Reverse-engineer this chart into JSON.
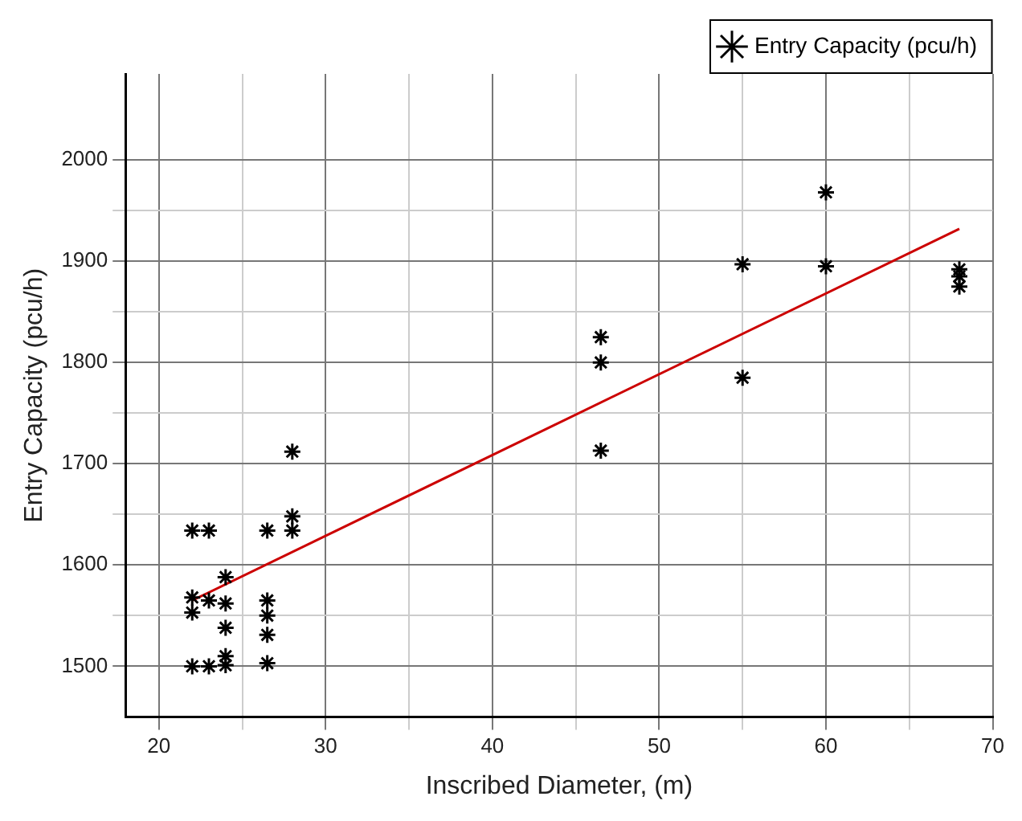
{
  "chart_data": {
    "type": "scatter",
    "xlabel": "Inscribed Diameter, (m)",
    "ylabel": "Entry Capacity (pcu/h)",
    "xlim": [
      18,
      70
    ],
    "ylim": [
      1450,
      2085
    ],
    "xticks": [
      20,
      {
        "value": 25,
        "label": null
      },
      30,
      {
        "value": 35,
        "label": null
      },
      40,
      {
        "value": 45,
        "label": null
      },
      50,
      {
        "value": 55,
        "label": null
      },
      60,
      {
        "value": 65,
        "label": null
      },
      70
    ],
    "yticks": [
      1500,
      {
        "value": 1550,
        "label": null
      },
      1600,
      {
        "value": 1650,
        "label": null
      },
      1700,
      {
        "value": 1750,
        "label": null
      },
      1800,
      {
        "value": 1850,
        "label": null
      },
      1900,
      {
        "value": 1950,
        "label": null
      },
      2000
    ],
    "grid": true,
    "legend": "top right",
    "marker": "cross",
    "series": [
      {
        "name": "Entry Capacity (pcu/h)",
        "color": "#000000",
        "x": [
          22,
          23,
          26.5,
          28,
          28,
          28,
          24,
          22,
          22,
          23,
          24,
          24,
          24,
          24,
          22,
          23,
          26.5,
          26.5,
          26.5,
          26.5,
          46.5,
          46.5,
          46.5,
          55,
          55,
          60,
          60,
          68,
          68,
          68
        ],
        "values": [
          1634,
          1634,
          1634,
          1648,
          1634,
          1712,
          1588,
          1568,
          1553,
          1565,
          1562,
          1538,
          1510,
          1501,
          1500,
          1500,
          1565,
          1550,
          1531,
          1503,
          1825,
          1800,
          1713,
          1897,
          1785,
          1968,
          1895,
          1892,
          1885,
          1875
        ]
      },
      {
        "color": "#cc0000",
        "type": "line",
        "marker": "none",
        "x": [
          22,
          68
        ],
        "values": [
          1565,
          1932
        ]
      }
    ]
  }
}
